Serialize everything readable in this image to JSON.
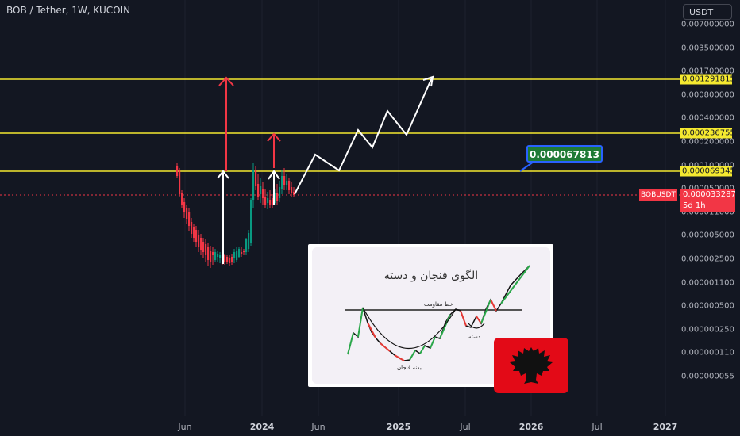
{
  "header": {
    "title": "BOB / Tether, 1W, KUCOIN",
    "currency_button": "USDT"
  },
  "chart_data": {
    "type": "candlestick",
    "symbol": "BOBUSDT",
    "y_scale": "log",
    "y_tick_labels": [
      "0.007000000",
      "0.003500000",
      "0.001700000",
      "0.000800000",
      "0.000400000",
      "0.000200000",
      "0.000100000",
      "0.000050000",
      "0.000011000",
      "0.000005000",
      "0.000002500",
      "0.000001100",
      "0.000000500",
      "0.000000250",
      "0.000000110",
      "0.000000055"
    ],
    "x_tick_labels": [
      {
        "label": "Jun",
        "bold": false
      },
      {
        "label": "2024",
        "bold": true
      },
      {
        "label": "Jun",
        "bold": false
      },
      {
        "label": "2025",
        "bold": true
      },
      {
        "label": "Jul",
        "bold": false
      },
      {
        "label": "2026",
        "bold": true
      },
      {
        "label": "Jul",
        "bold": false
      },
      {
        "label": "2027",
        "bold": true
      }
    ],
    "horizontal_levels": [
      "0.001291815",
      "0.000236755",
      "0.000069345"
    ],
    "current_price": "0.000033287",
    "countdown": "5d 1h",
    "callout": "0.000067813",
    "line_color": "#f5e930",
    "up_color": "#089981",
    "down_color": "#f23645"
  },
  "inset": {
    "title": "الگوی فنجان و دسته",
    "resistance_label": "خط مقاومت",
    "cup_label": "بدنه فنجان",
    "handle_label": "دسته"
  }
}
